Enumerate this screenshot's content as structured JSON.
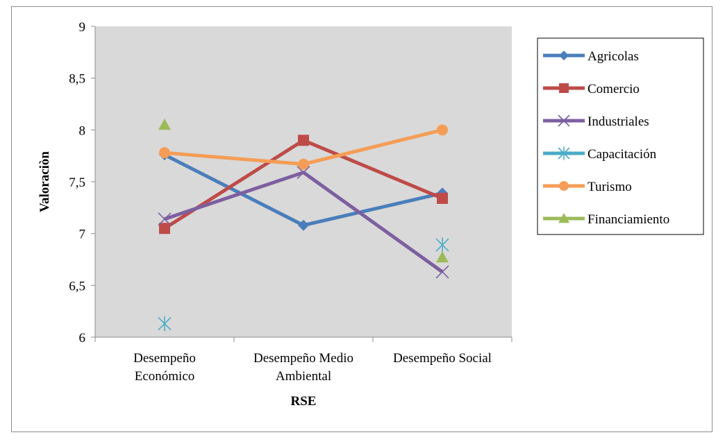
{
  "chart_data": {
    "type": "line",
    "title": "",
    "xlabel": "RSE",
    "ylabel": "Valoraciòn",
    "categories": [
      {
        "line1": "Desempeño",
        "line2": "Económico"
      },
      {
        "line1": "Desempeño Medio",
        "line2": "Ambiental"
      },
      {
        "line1": "Desempeño Social",
        "line2": ""
      }
    ],
    "yticks": [
      "6",
      "6,5",
      "7",
      "7,5",
      "8",
      "8,5",
      "9"
    ],
    "ylim": [
      6,
      9
    ],
    "plot_background": "#d9d9d9",
    "grid": false,
    "legend_position": "right",
    "series": [
      {
        "name": "Agricolas",
        "color": "#4a7ebb",
        "marker": "diamond",
        "line": true,
        "values": [
          7.76,
          7.08,
          7.39
        ]
      },
      {
        "name": "Comercio",
        "color": "#be4b48",
        "marker": "square",
        "line": true,
        "values": [
          7.05,
          7.9,
          7.34
        ]
      },
      {
        "name": "Industriales",
        "color": "#7d5fa0",
        "marker": "x",
        "line": true,
        "values": [
          7.14,
          7.59,
          6.63
        ]
      },
      {
        "name": "Capacitación",
        "color": "#4bacc6",
        "marker": "asterisk",
        "line": false,
        "values": [
          6.13,
          null,
          6.89
        ]
      },
      {
        "name": "Turismo",
        "color": "#f59d56",
        "marker": "circle",
        "line": true,
        "values": [
          7.78,
          7.67,
          8.0
        ]
      },
      {
        "name": "Financiamiento",
        "color": "#9bbb59",
        "marker": "triangle",
        "line": false,
        "values": [
          8.05,
          null,
          6.77
        ]
      }
    ]
  }
}
